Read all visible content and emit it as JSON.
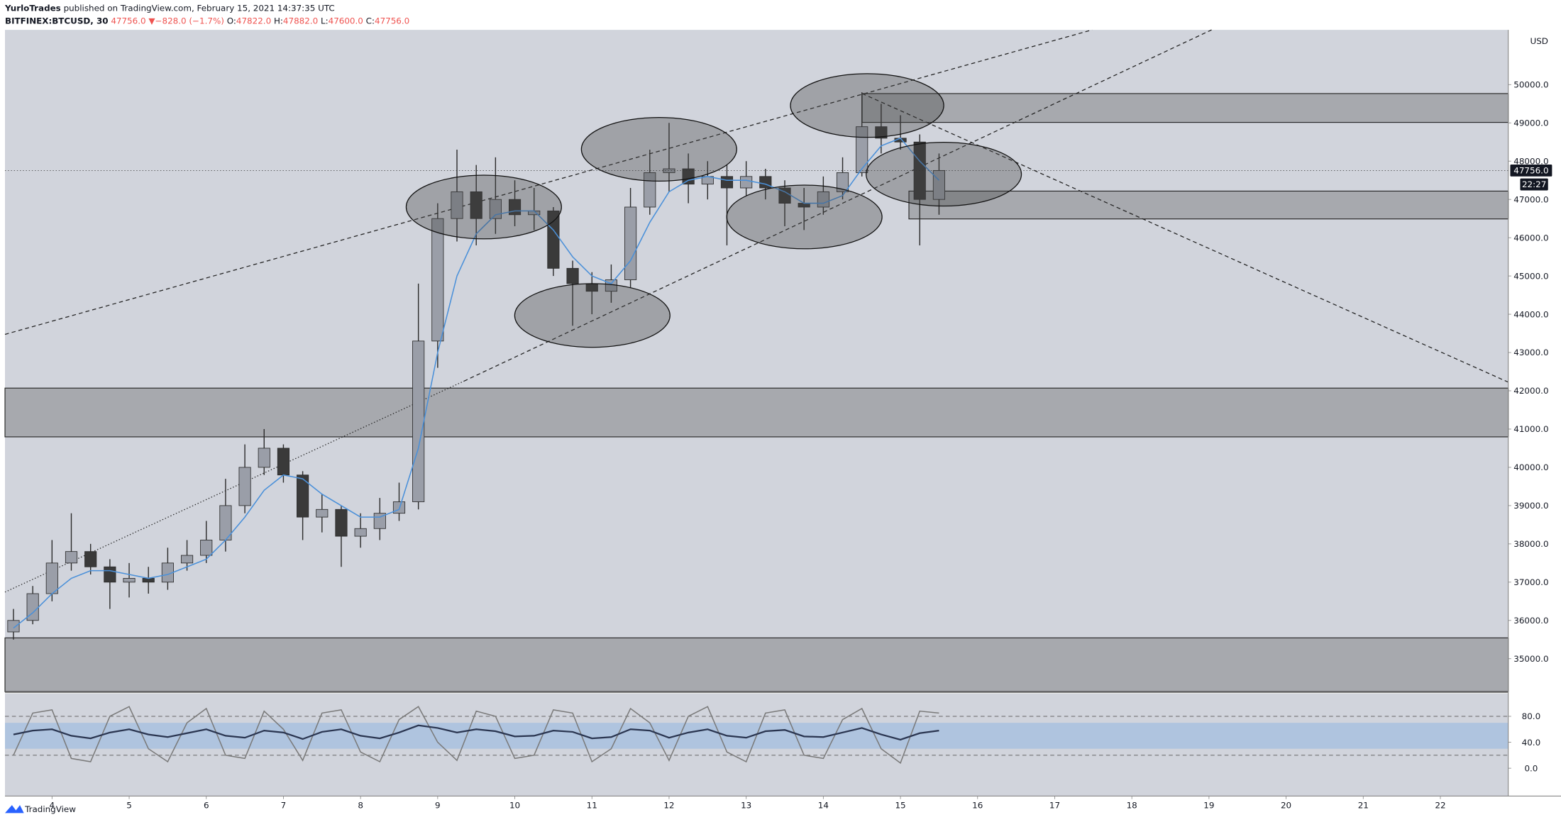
{
  "header": {
    "author": "YurloTrades",
    "published": "published on TradingView.com, February 15, 2021 14:37:35 UTC",
    "symbol": "BITFINEX:BTCUSD, 30",
    "price": "47756.0",
    "arrow": "▼",
    "change": "−828.0 (−1.7%)",
    "open_label": "O:",
    "open": "47822.0",
    "high_label": "H:",
    "high": "47882.0",
    "low_label": "L:",
    "low": "47600.0",
    "close_label": "C:",
    "close": "47756.0",
    "currency": "USD",
    "countdown": "22:27",
    "footer": "TradingView"
  },
  "chart_data": [
    {
      "type": "candlestick",
      "x": [
        3.5,
        3.75,
        4,
        4.25,
        4.5,
        4.75,
        5,
        5.25,
        5.5,
        5.75,
        6,
        6.25,
        6.5,
        6.75,
        7,
        7.25,
        7.5,
        7.75,
        8,
        8.25,
        8.5,
        8.75,
        9,
        9.25,
        9.5,
        9.75,
        10,
        10.25,
        10.5,
        10.75,
        11,
        11.25,
        11.5,
        11.75,
        12,
        12.25,
        12.5,
        12.75,
        13,
        13.25,
        13.5,
        13.75,
        14,
        14.25,
        14.5,
        14.75,
        15,
        15.25,
        15.5
      ],
      "open": [
        35700,
        36000,
        36700,
        37500,
        37800,
        37400,
        37000,
        37100,
        37000,
        37500,
        37700,
        38100,
        39000,
        40000,
        40500,
        39800,
        38700,
        38900,
        38200,
        38400,
        38800,
        39100,
        43300,
        46500,
        47200,
        46500,
        47000,
        46600,
        46700,
        45200,
        44800,
        44600,
        44900,
        46800,
        47700,
        47800,
        47400,
        47600,
        47300,
        47600,
        47300,
        46900,
        46800,
        47200,
        47700,
        48900,
        48600,
        48500,
        47000
      ],
      "high": [
        36300,
        36900,
        38100,
        38800,
        38000,
        37600,
        37500,
        37400,
        37900,
        38100,
        38600,
        39700,
        40600,
        41000,
        40600,
        39900,
        39300,
        39000,
        38800,
        39200,
        39600,
        44800,
        46900,
        48300,
        47900,
        48100,
        47500,
        47300,
        46800,
        45400,
        45100,
        45300,
        47300,
        48300,
        49000,
        48200,
        48000,
        47900,
        48000,
        47800,
        47500,
        47300,
        47600,
        48100,
        49800,
        49500,
        49200,
        48700,
        48200
      ],
      "low": [
        35500,
        35900,
        36500,
        37300,
        37200,
        36300,
        36600,
        36700,
        36800,
        37300,
        37500,
        37800,
        38800,
        39800,
        39600,
        38100,
        38300,
        37400,
        37900,
        38100,
        38600,
        38900,
        42600,
        45900,
        45800,
        46100,
        46300,
        46200,
        45000,
        43700,
        44000,
        44300,
        44700,
        46600,
        47200,
        46900,
        47000,
        45800,
        47100,
        47000,
        46300,
        46200,
        46600,
        47000,
        47600,
        48200,
        48300,
        45800,
        46600
      ],
      "close": [
        36000,
        36700,
        37500,
        37800,
        37400,
        37000,
        37100,
        37000,
        37500,
        37700,
        38100,
        39000,
        40000,
        40500,
        39800,
        38700,
        38900,
        38200,
        38400,
        38800,
        39100,
        43300,
        46500,
        47200,
        46500,
        47000,
        46600,
        46700,
        45200,
        44800,
        44600,
        44900,
        46800,
        47700,
        47800,
        47400,
        47600,
        47300,
        47600,
        47300,
        46900,
        46800,
        47200,
        47700,
        48900,
        48600,
        48500,
        47000,
        47756
      ],
      "series": [
        {
          "color": "#4a90d9",
          "values": [
            35800,
            36200,
            36700,
            37100,
            37300,
            37300,
            37200,
            37100,
            37200,
            37400,
            37600,
            38100,
            38700,
            39400,
            39800,
            39700,
            39300,
            39000,
            38700,
            38700,
            38900,
            40500,
            43000,
            45000,
            46100,
            46600,
            46700,
            46700,
            46200,
            45500,
            45000,
            44800,
            45400,
            46400,
            47200,
            47500,
            47600,
            47500,
            47500,
            47400,
            47200,
            46900,
            46900,
            47100,
            47800,
            48400,
            48600,
            48000,
            47500
          ]
        }
      ],
      "xlim": [
        3.39,
        22.88
      ],
      "ylim": [
        34140,
        51430
      ],
      "yticks": [
        {
          "value": 35000,
          "label": "35000.0"
        },
        {
          "value": 36000,
          "label": "36000.0"
        },
        {
          "value": 37000,
          "label": "37000.0"
        },
        {
          "value": 38000,
          "label": "38000.0"
        },
        {
          "value": 39000,
          "label": "39000.0"
        },
        {
          "value": 40000,
          "label": "40000.0"
        },
        {
          "value": 41000,
          "label": "41000.0"
        },
        {
          "value": 42000,
          "label": "42000.0"
        },
        {
          "value": 43000,
          "label": "43000.0"
        },
        {
          "value": 44000,
          "label": "44000.0"
        },
        {
          "value": 45000,
          "label": "45000.0"
        },
        {
          "value": 46000,
          "label": "46000.0"
        },
        {
          "value": 47000,
          "label": "47000.0"
        },
        {
          "value": 48000,
          "label": "48000.0"
        },
        {
          "value": 49000,
          "label": "49000.0"
        },
        {
          "value": 50000,
          "label": "50000.0"
        }
      ],
      "last_price": {
        "value": 47756,
        "label": "47756.0"
      }
    },
    {
      "type": "line",
      "x": [
        3.5,
        3.75,
        4,
        4.25,
        4.5,
        4.75,
        5,
        5.25,
        5.5,
        5.75,
        6,
        6.25,
        6.5,
        6.75,
        7,
        7.25,
        7.5,
        7.75,
        8,
        8.25,
        8.5,
        8.75,
        9,
        9.25,
        9.5,
        9.75,
        10,
        10.25,
        10.5,
        10.75,
        11,
        11.25,
        11.5,
        11.75,
        12,
        12.25,
        12.5,
        12.75,
        13,
        13.25,
        13.5,
        13.75,
        14,
        14.25,
        14.5,
        14.75,
        15,
        15.25,
        15.5
      ],
      "series": [
        {
          "color": "#7a7a7a",
          "values": [
            20,
            85,
            90,
            15,
            10,
            80,
            95,
            30,
            10,
            70,
            92,
            20,
            15,
            88,
            60,
            12,
            85,
            90,
            25,
            10,
            75,
            95,
            40,
            12,
            88,
            80,
            15,
            20,
            90,
            85,
            10,
            30,
            92,
            70,
            12,
            80,
            95,
            25,
            10,
            85,
            90,
            20,
            15,
            75,
            92,
            30,
            8,
            88,
            85
          ]
        },
        {
          "color": "#2a3550",
          "values": [
            52,
            58,
            60,
            50,
            46,
            55,
            60,
            52,
            48,
            54,
            60,
            50,
            47,
            58,
            55,
            45,
            56,
            60,
            50,
            46,
            55,
            66,
            62,
            55,
            60,
            57,
            49,
            50,
            58,
            56,
            46,
            48,
            60,
            58,
            47,
            55,
            60,
            50,
            47,
            57,
            59,
            49,
            48,
            55,
            62,
            52,
            44,
            54,
            58
          ]
        }
      ],
      "xlim": [
        3.39,
        22.88
      ],
      "ylim": [
        -43,
        115
      ],
      "yticks": [
        {
          "value": 0,
          "label": "0.0"
        },
        {
          "value": 40,
          "label": "40.0"
        },
        {
          "value": 80,
          "label": "80.0"
        }
      ],
      "xticks": [
        4,
        5,
        6,
        7,
        8,
        9,
        10,
        11,
        12,
        13,
        14,
        15,
        16,
        17,
        18,
        19,
        20,
        21,
        22
      ],
      "band": [
        30,
        70
      ],
      "levels": [
        20,
        80
      ]
    }
  ]
}
